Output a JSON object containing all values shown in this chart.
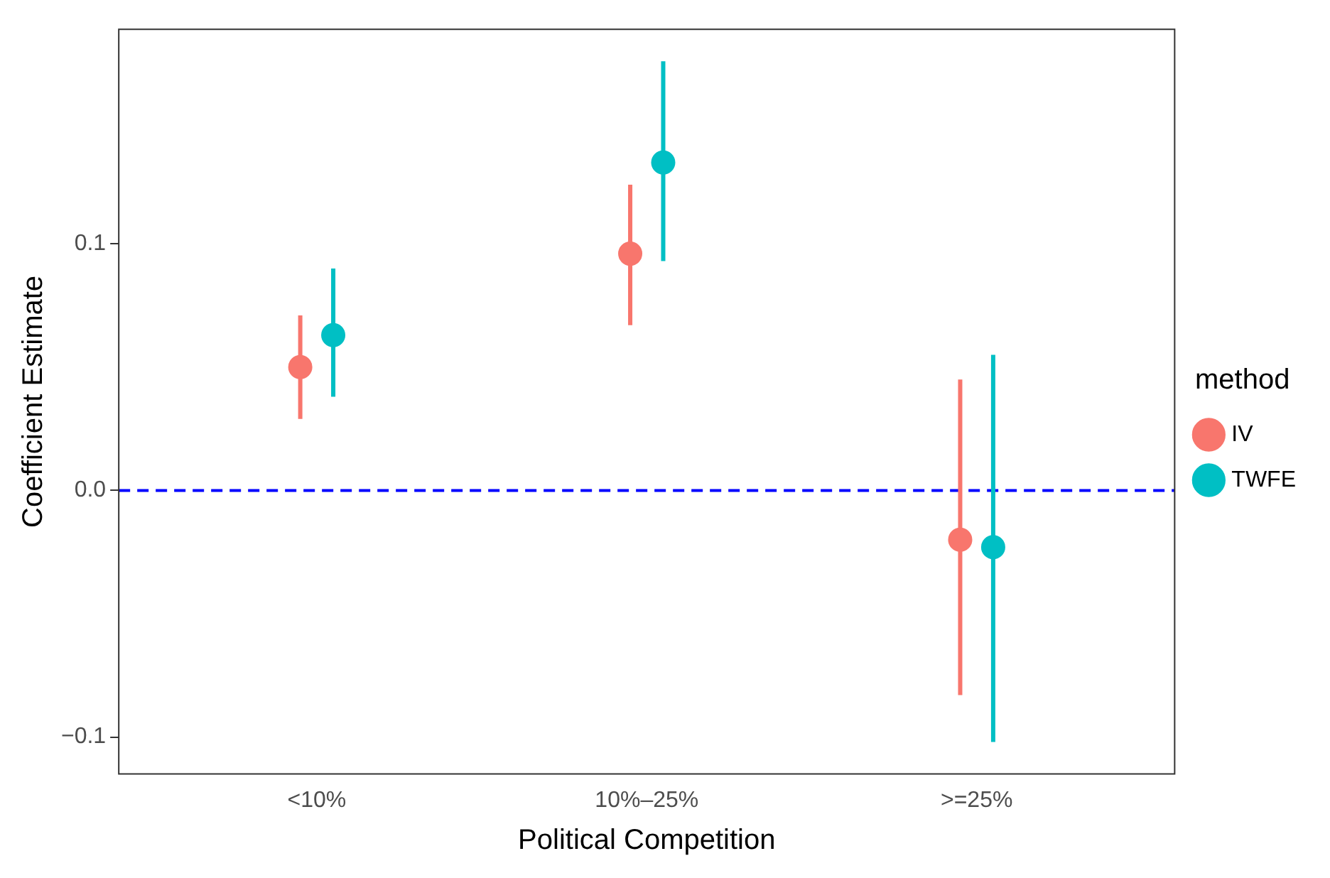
{
  "chart_data": {
    "type": "scatter",
    "xlabel": "Political Competition",
    "ylabel": "Coefficient Estimate",
    "legend_title": "method",
    "legend": "right",
    "grid": false,
    "marker": "circle",
    "categories": [
      "<10%",
      "10%–25%",
      ">=25%"
    ],
    "ylim": [
      -0.115,
      0.187
    ],
    "yticks": [
      {
        "value": -0.1,
        "label": "−0.1"
      },
      {
        "value": 0,
        "label": "0.0"
      },
      {
        "value": 0.1,
        "label": "0.1"
      }
    ],
    "series": [
      {
        "name": "IV",
        "color": "#f8766d",
        "values": [
          0.05,
          0.096,
          -0.02
        ],
        "errors": [
          [
            0.029,
            0.071
          ],
          [
            0.067,
            0.124
          ],
          [
            -0.083,
            0.045
          ]
        ]
      },
      {
        "name": "TWFE",
        "color": "#00bfc4",
        "values": [
          0.063,
          0.133,
          -0.023
        ],
        "errors": [
          [
            0.038,
            0.09
          ],
          [
            0.093,
            0.174
          ],
          [
            -0.102,
            0.055
          ]
        ]
      }
    ],
    "ref_lines": [
      {
        "axis": "y",
        "value": 0,
        "color": "#0000ff",
        "line_style": "dashed"
      }
    ]
  }
}
